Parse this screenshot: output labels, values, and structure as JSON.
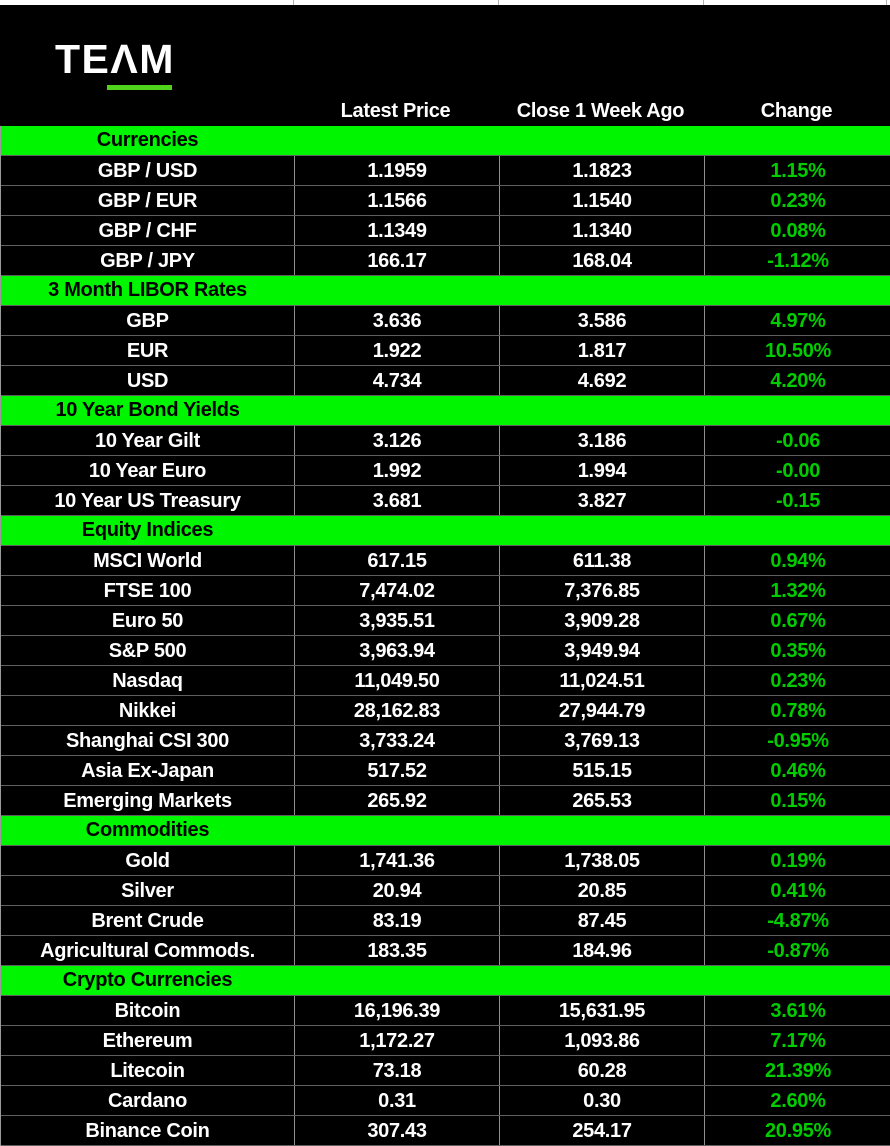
{
  "logo": {
    "brand": "TEAM",
    "display": "TEΛM"
  },
  "colors": {
    "section_header_bg": "#00f500",
    "change_text": "#00cc00",
    "logo_underline": "#50d31b",
    "header_text": "#ffffff",
    "section_title_text": "#000000"
  },
  "chart_data": {
    "type": "table",
    "columns": [
      "",
      "Latest Price",
      "Close 1 Week Ago",
      "Change"
    ],
    "sections": [
      {
        "title": "Currencies",
        "rows": [
          {
            "label": "GBP / USD",
            "latest": "1.1959",
            "close": "1.1823",
            "change": "1.15%"
          },
          {
            "label": "GBP / EUR",
            "latest": "1.1566",
            "close": "1.1540",
            "change": "0.23%"
          },
          {
            "label": "GBP / CHF",
            "latest": "1.1349",
            "close": "1.1340",
            "change": "0.08%"
          },
          {
            "label": "GBP / JPY",
            "latest": "166.17",
            "close": "168.04",
            "change": "-1.12%"
          }
        ]
      },
      {
        "title": "3 Month LIBOR Rates",
        "rows": [
          {
            "label": "GBP",
            "latest": "3.636",
            "close": "3.586",
            "change": "4.97%"
          },
          {
            "label": "EUR",
            "latest": "1.922",
            "close": "1.817",
            "change": "10.50%"
          },
          {
            "label": "USD",
            "latest": "4.734",
            "close": "4.692",
            "change": "4.20%"
          }
        ]
      },
      {
        "title": "10 Year Bond Yields",
        "rows": [
          {
            "label": "10 Year Gilt",
            "latest": "3.126",
            "close": "3.186",
            "change": "-0.06"
          },
          {
            "label": "10 Year Euro",
            "latest": "1.992",
            "close": "1.994",
            "change": "-0.00"
          },
          {
            "label": "10 Year US Treasury",
            "latest": "3.681",
            "close": "3.827",
            "change": "-0.15"
          }
        ]
      },
      {
        "title": "Equity Indices",
        "rows": [
          {
            "label": "MSCI World",
            "latest": "617.15",
            "close": "611.38",
            "change": "0.94%"
          },
          {
            "label": "FTSE 100",
            "latest": "7,474.02",
            "close": "7,376.85",
            "change": "1.32%"
          },
          {
            "label": "Euro 50",
            "latest": "3,935.51",
            "close": "3,909.28",
            "change": "0.67%"
          },
          {
            "label": "S&P 500",
            "latest": "3,963.94",
            "close": "3,949.94",
            "change": "0.35%"
          },
          {
            "label": "Nasdaq",
            "latest": "11,049.50",
            "close": "11,024.51",
            "change": "0.23%"
          },
          {
            "label": "Nikkei",
            "latest": "28,162.83",
            "close": "27,944.79",
            "change": "0.78%"
          },
          {
            "label": "Shanghai CSI 300",
            "latest": "3,733.24",
            "close": "3,769.13",
            "change": "-0.95%"
          },
          {
            "label": "Asia Ex-Japan",
            "latest": "517.52",
            "close": "515.15",
            "change": "0.46%"
          },
          {
            "label": "Emerging Markets",
            "latest": "265.92",
            "close": "265.53",
            "change": "0.15%"
          }
        ]
      },
      {
        "title": "Commodities",
        "rows": [
          {
            "label": "Gold",
            "latest": "1,741.36",
            "close": "1,738.05",
            "change": "0.19%"
          },
          {
            "label": "Silver",
            "latest": "20.94",
            "close": "20.85",
            "change": "0.41%"
          },
          {
            "label": "Brent Crude",
            "latest": "83.19",
            "close": "87.45",
            "change": "-4.87%"
          },
          {
            "label": "Agricultural Commods.",
            "latest": "183.35",
            "close": "184.96",
            "change": "-0.87%"
          }
        ]
      },
      {
        "title": "Crypto Currencies",
        "rows": [
          {
            "label": "Bitcoin",
            "latest": "16,196.39",
            "close": "15,631.95",
            "change": "3.61%"
          },
          {
            "label": "Ethereum",
            "latest": "1,172.27",
            "close": "1,093.86",
            "change": "7.17%"
          },
          {
            "label": "Litecoin",
            "latest": "73.18",
            "close": "60.28",
            "change": "21.39%"
          },
          {
            "label": "Cardano",
            "latest": "0.31",
            "close": "0.30",
            "change": "2.60%"
          },
          {
            "label": "Binance Coin",
            "latest": "307.43",
            "close": "254.17",
            "change": "20.95%"
          }
        ]
      }
    ]
  }
}
